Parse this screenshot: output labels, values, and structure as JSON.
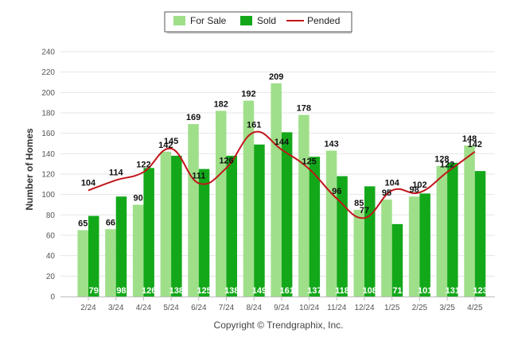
{
  "chart_data": {
    "type": "bar",
    "categories": [
      "2/24",
      "3/24",
      "4/24",
      "5/24",
      "6/24",
      "7/24",
      "8/24",
      "9/24",
      "10/24",
      "11/24",
      "12/24",
      "1/25",
      "2/25",
      "3/25",
      "4/25"
    ],
    "series": [
      {
        "name": "For Sale",
        "type": "bar",
        "color": "#9fdf8a",
        "values": [
          65,
          66,
          90,
          142,
          169,
          182,
          192,
          209,
          178,
          143,
          85,
          95,
          98,
          128,
          148
        ]
      },
      {
        "name": "Sold",
        "type": "bar",
        "color": "#13a81a",
        "values": [
          79,
          98,
          126,
          138,
          125,
          138,
          149,
          161,
          137,
          118,
          108,
          71,
          101,
          131,
          123
        ]
      },
      {
        "name": "Pended",
        "type": "line",
        "color": "#c0161b",
        "values": [
          104,
          114,
          122,
          145,
          111,
          126,
          161,
          144,
          125,
          96,
          77,
          104,
          102,
          122,
          142
        ]
      }
    ],
    "ylabel": "Number of Homes",
    "xlabel": "",
    "ylim": [
      0,
      240
    ],
    "yticks": [
      0,
      20,
      40,
      60,
      80,
      100,
      120,
      140,
      160,
      180,
      200,
      220,
      240
    ],
    "grid": true,
    "legend": "top-center",
    "credit": "Copyright © Trendgraphix, Inc."
  }
}
